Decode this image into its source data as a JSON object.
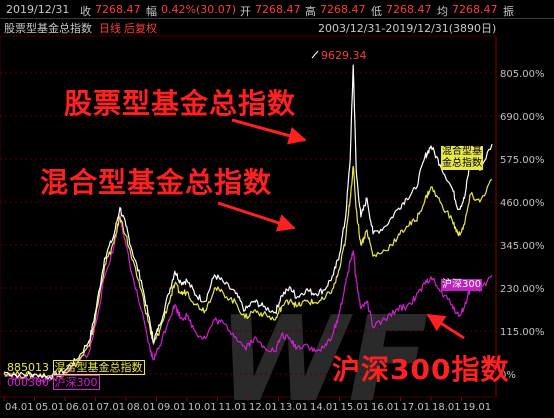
{
  "header": {
    "date": "2019/12/31",
    "close_label": "收",
    "close_value": "7268.47",
    "change_label": "幅",
    "change_value": "0.42%(30.07)",
    "open_label": "开",
    "open_value": "7268.47",
    "high_label": "高",
    "high_value": "7268.47",
    "low_label": "低",
    "low_value": "7268.47",
    "level_label": "均",
    "level_value": "7268.47",
    "more_label": "振"
  },
  "subheader": {
    "index_name": "股票型基金总指数",
    "period": "日线",
    "adjust": "后复权",
    "date_range": "2003/12/31-2019/12/31(3890日)"
  },
  "annotations": {
    "stock_fund_callout": "股票型基金总指数",
    "mixed_fund_callout": "混合型基金总指数",
    "hs300_callout": "沪深300指数",
    "peak_label": "9629.34"
  },
  "legend": {
    "code_line_1": "885013",
    "name_line_1": "混合型基金总指数",
    "code_line_2": "000300",
    "name_line_2": "沪深300",
    "tag_mixed_1": "混合型基",
    "tag_mixed_2": "金总指数",
    "tag_hs300": "沪深300"
  },
  "colors": {
    "stock_fund": "#ffffff",
    "mixed_fund": "#e8e84a",
    "hs300": "#d020d0",
    "accent_red": "#ff2020",
    "grid": "#5a0000",
    "axis_text": "#c0c0c0"
  },
  "chart_data": {
    "type": "line",
    "title": "",
    "xlabel": "",
    "ylabel": "",
    "ylim_pct": [
      0,
      805
    ],
    "y_ticks_pct": [
      0,
      115,
      230,
      345,
      460,
      575,
      690,
      805
    ],
    "y_tick_labels": [
      "0%",
      "115.00%",
      "230.00%",
      "345.00%",
      "460.00%",
      "575.00%",
      "690.00%",
      "805.00%"
    ],
    "x_ticks": [
      "04.01",
      "05.01",
      "06.01",
      "07.01",
      "08.01",
      "09.01",
      "10.01",
      "11.01",
      "12.01",
      "13.01",
      "14.01",
      "15.01",
      "16.01",
      "17.01",
      "18.01",
      "19.01"
    ],
    "x_start_year": 2004.0,
    "x_end_year": 2020.0,
    "series": [
      {
        "name": "股票型基金总指数",
        "points": [
          [
            2004.0,
            5
          ],
          [
            2004.5,
            -3
          ],
          [
            2005.0,
            0
          ],
          [
            2005.5,
            -8
          ],
          [
            2006.0,
            10
          ],
          [
            2006.4,
            40
          ],
          [
            2006.8,
            90
          ],
          [
            2007.0,
            165
          ],
          [
            2007.3,
            310
          ],
          [
            2007.6,
            370
          ],
          [
            2007.8,
            445
          ],
          [
            2008.0,
            395
          ],
          [
            2008.2,
            330
          ],
          [
            2008.5,
            250
          ],
          [
            2008.8,
            130
          ],
          [
            2008.9,
            88
          ],
          [
            2009.1,
            130
          ],
          [
            2009.4,
            215
          ],
          [
            2009.6,
            275
          ],
          [
            2009.8,
            245
          ],
          [
            2010.0,
            250
          ],
          [
            2010.3,
            210
          ],
          [
            2010.6,
            195
          ],
          [
            2010.9,
            265
          ],
          [
            2011.2,
            245
          ],
          [
            2011.6,
            215
          ],
          [
            2011.9,
            170
          ],
          [
            2012.2,
            195
          ],
          [
            2012.5,
            180
          ],
          [
            2012.9,
            165
          ],
          [
            2013.1,
            210
          ],
          [
            2013.4,
            230
          ],
          [
            2013.6,
            205
          ],
          [
            2013.9,
            225
          ],
          [
            2014.2,
            215
          ],
          [
            2014.5,
            225
          ],
          [
            2014.8,
            265
          ],
          [
            2015.0,
            320
          ],
          [
            2015.2,
            420
          ],
          [
            2015.35,
            575
          ],
          [
            2015.45,
            826
          ],
          [
            2015.55,
            540
          ],
          [
            2015.7,
            420
          ],
          [
            2015.9,
            470
          ],
          [
            2016.1,
            375
          ],
          [
            2016.5,
            395
          ],
          [
            2016.9,
            440
          ],
          [
            2017.2,
            470
          ],
          [
            2017.5,
            495
          ],
          [
            2017.8,
            580
          ],
          [
            2018.0,
            610
          ],
          [
            2018.3,
            560
          ],
          [
            2018.7,
            495
          ],
          [
            2018.9,
            440
          ],
          [
            2019.1,
            470
          ],
          [
            2019.3,
            575
          ],
          [
            2019.6,
            545
          ],
          [
            2020.0,
            615
          ]
        ]
      },
      {
        "name": "混合型基金总指数",
        "points": [
          [
            2004.0,
            3
          ],
          [
            2004.5,
            -2
          ],
          [
            2005.0,
            -2
          ],
          [
            2005.5,
            -5
          ],
          [
            2006.0,
            5
          ],
          [
            2006.4,
            30
          ],
          [
            2006.8,
            75
          ],
          [
            2007.0,
            150
          ],
          [
            2007.3,
            290
          ],
          [
            2007.6,
            350
          ],
          [
            2007.8,
            420
          ],
          [
            2008.0,
            370
          ],
          [
            2008.2,
            305
          ],
          [
            2008.5,
            225
          ],
          [
            2008.8,
            115
          ],
          [
            2008.9,
            80
          ],
          [
            2009.1,
            115
          ],
          [
            2009.4,
            190
          ],
          [
            2009.6,
            240
          ],
          [
            2009.8,
            215
          ],
          [
            2010.0,
            220
          ],
          [
            2010.3,
            185
          ],
          [
            2010.6,
            170
          ],
          [
            2010.9,
            230
          ],
          [
            2011.2,
            215
          ],
          [
            2011.6,
            190
          ],
          [
            2011.9,
            150
          ],
          [
            2012.2,
            170
          ],
          [
            2012.5,
            160
          ],
          [
            2012.9,
            145
          ],
          [
            2013.1,
            180
          ],
          [
            2013.4,
            200
          ],
          [
            2013.6,
            180
          ],
          [
            2013.9,
            195
          ],
          [
            2014.2,
            190
          ],
          [
            2014.5,
            200
          ],
          [
            2014.8,
            230
          ],
          [
            2015.0,
            280
          ],
          [
            2015.2,
            360
          ],
          [
            2015.35,
            470
          ],
          [
            2015.45,
            555
          ],
          [
            2015.55,
            440
          ],
          [
            2015.7,
            345
          ],
          [
            2015.9,
            385
          ],
          [
            2016.1,
            315
          ],
          [
            2016.5,
            330
          ],
          [
            2016.9,
            365
          ],
          [
            2017.2,
            395
          ],
          [
            2017.5,
            410
          ],
          [
            2017.8,
            465
          ],
          [
            2018.0,
            500
          ],
          [
            2018.3,
            460
          ],
          [
            2018.7,
            410
          ],
          [
            2018.9,
            370
          ],
          [
            2019.1,
            400
          ],
          [
            2019.3,
            480
          ],
          [
            2019.6,
            460
          ],
          [
            2020.0,
            520
          ]
        ]
      },
      {
        "name": "沪深300",
        "points": [
          [
            2004.0,
            0
          ],
          [
            2004.5,
            -10
          ],
          [
            2005.0,
            -12
          ],
          [
            2005.5,
            -18
          ],
          [
            2006.0,
            0
          ],
          [
            2006.4,
            30
          ],
          [
            2006.8,
            60
          ],
          [
            2007.0,
            130
          ],
          [
            2007.3,
            260
          ],
          [
            2007.6,
            340
          ],
          [
            2007.8,
            425
          ],
          [
            2008.0,
            345
          ],
          [
            2008.2,
            265
          ],
          [
            2008.5,
            170
          ],
          [
            2008.8,
            60
          ],
          [
            2008.9,
            40
          ],
          [
            2009.1,
            75
          ],
          [
            2009.4,
            145
          ],
          [
            2009.6,
            185
          ],
          [
            2009.8,
            150
          ],
          [
            2010.0,
            155
          ],
          [
            2010.3,
            110
          ],
          [
            2010.6,
            95
          ],
          [
            2010.9,
            145
          ],
          [
            2011.2,
            135
          ],
          [
            2011.6,
            100
          ],
          [
            2011.9,
            70
          ],
          [
            2012.2,
            95
          ],
          [
            2012.5,
            75
          ],
          [
            2012.9,
            60
          ],
          [
            2013.1,
            105
          ],
          [
            2013.4,
            90
          ],
          [
            2013.6,
            70
          ],
          [
            2013.9,
            80
          ],
          [
            2014.2,
            60
          ],
          [
            2014.5,
            70
          ],
          [
            2014.8,
            110
          ],
          [
            2015.0,
            165
          ],
          [
            2015.2,
            240
          ],
          [
            2015.35,
            300
          ],
          [
            2015.45,
            330
          ],
          [
            2015.55,
            250
          ],
          [
            2015.7,
            175
          ],
          [
            2015.9,
            195
          ],
          [
            2016.1,
            125
          ],
          [
            2016.5,
            145
          ],
          [
            2016.9,
            175
          ],
          [
            2017.2,
            180
          ],
          [
            2017.5,
            205
          ],
          [
            2017.8,
            240
          ],
          [
            2018.0,
            260
          ],
          [
            2018.3,
            220
          ],
          [
            2018.7,
            185
          ],
          [
            2018.9,
            155
          ],
          [
            2019.1,
            180
          ],
          [
            2019.3,
            235
          ],
          [
            2019.6,
            220
          ],
          [
            2020.0,
            265
          ]
        ]
      }
    ]
  }
}
